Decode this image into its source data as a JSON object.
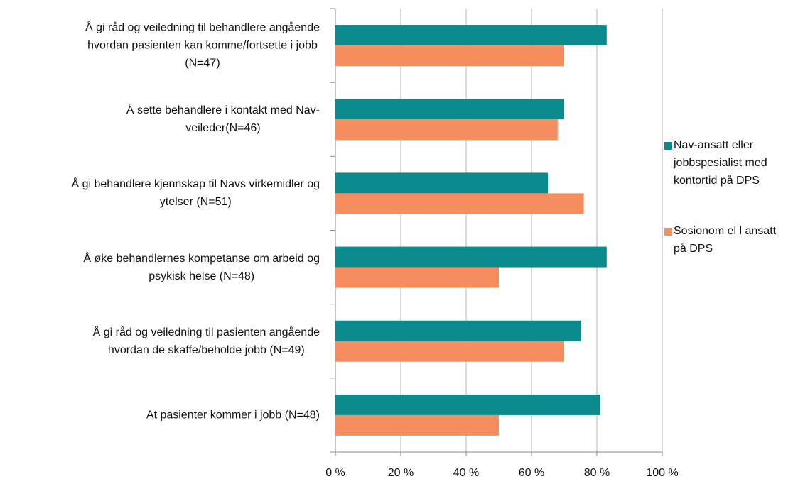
{
  "chart_data": {
    "type": "barh",
    "categories": [
      "Å gi råd og veiledning til behandlere angående\nhvordan pasienten kan komme/fortsette i jobb\n(N=47)",
      "Å sette behandlere i kontakt med Nav-\nveileder(N=46)",
      "Å gi behandlere kjennskap til Navs virkemidler og\nytelser (N=51)",
      "Å øke behandlernes kompetanse om arbeid og\npsykisk helse (N=48)",
      "Å gi råd og veiledning til pasienten angående\nhvordan de skaffe/beholde jobb (N=49)",
      "At pasienter kommer i jobb (N=48)"
    ],
    "series": [
      {
        "name": "Nav-ansatt eller jobbspesialist med kontortid på DPS",
        "color": "#0a8a8c",
        "values": [
          83,
          70,
          65,
          83,
          75,
          81
        ]
      },
      {
        "name": "Sosionom el l ansatt på DPS",
        "color": "#f58d5e",
        "values": [
          70,
          68,
          76,
          50,
          70,
          50
        ]
      }
    ],
    "xlim": [
      0,
      100
    ],
    "xticks": [
      {
        "value": 0,
        "label": "0 %"
      },
      {
        "value": 20,
        "label": "20 %"
      },
      {
        "value": 40,
        "label": "40 %"
      },
      {
        "value": 60,
        "label": "60 %"
      },
      {
        "value": 80,
        "label": "80 %"
      },
      {
        "value": 100,
        "label": "100 %"
      }
    ],
    "grid": true,
    "legend": "right"
  }
}
